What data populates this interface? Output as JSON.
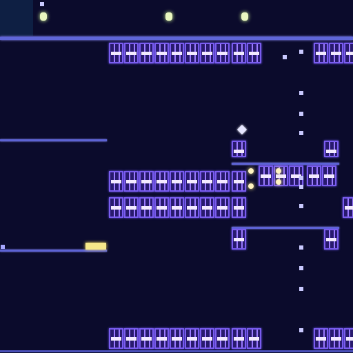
{
  "game": {
    "theme": "neon-night",
    "colors": {
      "background": "#0b0b2c",
      "platform": "#5f66d8",
      "brick_outline": "#7a5cf0",
      "brick_stripe": "#f3eaff",
      "lamp": "#eaf7c0",
      "coin": "#f5e78a"
    },
    "icons": {
      "player": "diamond-player-icon",
      "coin": "glowing-coin-block-icon",
      "lamp": "lamp-icon"
    }
  }
}
